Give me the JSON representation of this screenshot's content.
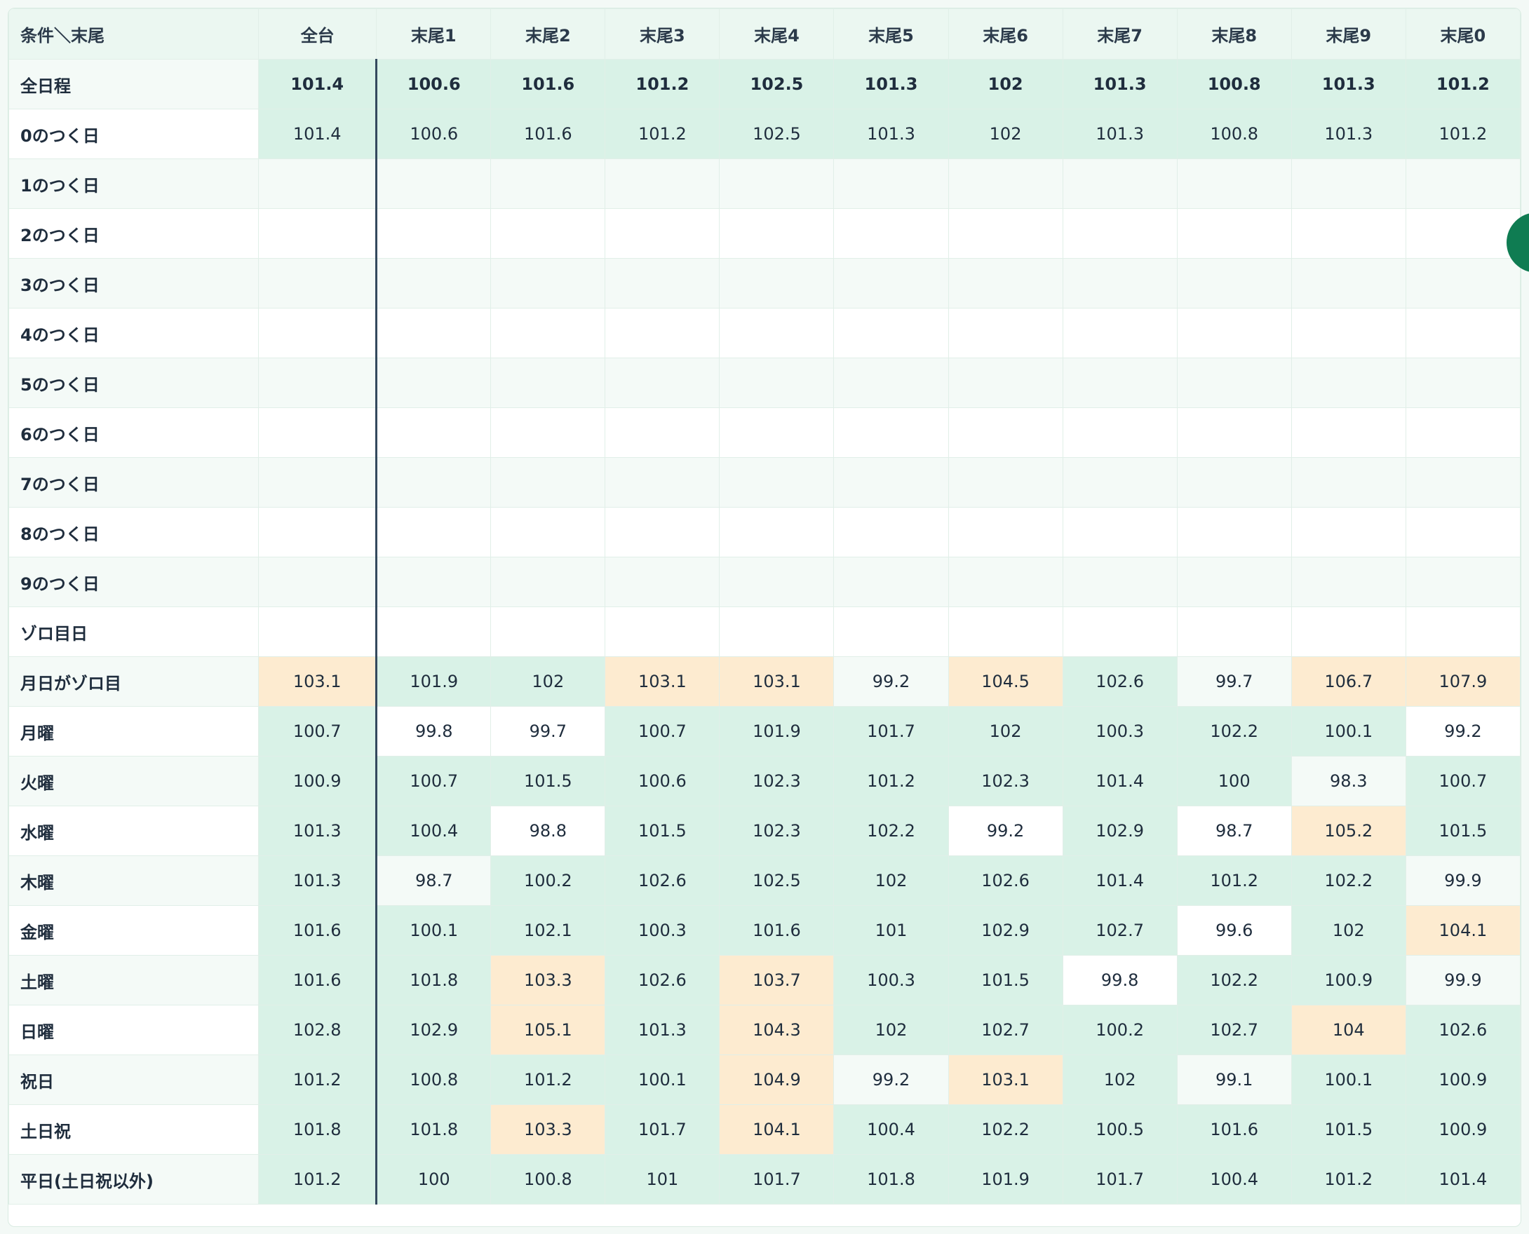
{
  "table": {
    "corner": "条件＼末尾",
    "columns": [
      "全台",
      "末尾1",
      "末尾2",
      "末尾3",
      "末尾4",
      "末尾5",
      "末尾6",
      "末尾7",
      "末尾8",
      "末尾9",
      "末尾0"
    ],
    "rows": [
      {
        "label": "全日程",
        "bold": true,
        "values": [
          "101.4",
          "100.6",
          "101.6",
          "101.2",
          "102.5",
          "101.3",
          "102",
          "101.3",
          "100.8",
          "101.3",
          "101.2"
        ],
        "tones": [
          "g",
          "g",
          "g",
          "g",
          "g",
          "g",
          "g",
          "g",
          "g",
          "g",
          "g"
        ]
      },
      {
        "label": "0のつく日",
        "values": [
          "101.4",
          "100.6",
          "101.6",
          "101.2",
          "102.5",
          "101.3",
          "102",
          "101.3",
          "100.8",
          "101.3",
          "101.2"
        ],
        "tones": [
          "g",
          "g",
          "g",
          "g",
          "g",
          "g",
          "g",
          "g",
          "g",
          "g",
          "g"
        ]
      },
      {
        "label": "1のつく日",
        "values": []
      },
      {
        "label": "2のつく日",
        "values": []
      },
      {
        "label": "3のつく日",
        "values": []
      },
      {
        "label": "4のつく日",
        "values": []
      },
      {
        "label": "5のつく日",
        "values": []
      },
      {
        "label": "6のつく日",
        "values": []
      },
      {
        "label": "7のつく日",
        "values": []
      },
      {
        "label": "8のつく日",
        "values": []
      },
      {
        "label": "9のつく日",
        "values": []
      },
      {
        "label": "ゾロ目日",
        "values": []
      },
      {
        "label": "月日がゾロ目",
        "values": [
          "103.1",
          "101.9",
          "102",
          "103.1",
          "103.1",
          "99.2",
          "104.5",
          "102.6",
          "99.7",
          "106.7",
          "107.9"
        ],
        "tones": [
          "o",
          "g",
          "g",
          "o",
          "o",
          "l",
          "o",
          "g",
          "l",
          "o",
          "o"
        ]
      },
      {
        "label": "月曜",
        "values": [
          "100.7",
          "99.8",
          "99.7",
          "100.7",
          "101.9",
          "101.7",
          "102",
          "100.3",
          "102.2",
          "100.1",
          "99.2"
        ],
        "tones": [
          "g",
          "w",
          "w",
          "g",
          "g",
          "g",
          "g",
          "g",
          "g",
          "g",
          "w"
        ]
      },
      {
        "label": "火曜",
        "values": [
          "100.9",
          "100.7",
          "101.5",
          "100.6",
          "102.3",
          "101.2",
          "102.3",
          "101.4",
          "100",
          "98.3",
          "100.7"
        ],
        "tones": [
          "g",
          "g",
          "g",
          "g",
          "g",
          "g",
          "g",
          "g",
          "g",
          "l",
          "g"
        ]
      },
      {
        "label": "水曜",
        "values": [
          "101.3",
          "100.4",
          "98.8",
          "101.5",
          "102.3",
          "102.2",
          "99.2",
          "102.9",
          "98.7",
          "105.2",
          "101.5"
        ],
        "tones": [
          "g",
          "g",
          "w",
          "g",
          "g",
          "g",
          "w",
          "g",
          "w",
          "o",
          "g"
        ]
      },
      {
        "label": "木曜",
        "values": [
          "101.3",
          "98.7",
          "100.2",
          "102.6",
          "102.5",
          "102",
          "102.6",
          "101.4",
          "101.2",
          "102.2",
          "99.9"
        ],
        "tones": [
          "g",
          "l",
          "g",
          "g",
          "g",
          "g",
          "g",
          "g",
          "g",
          "g",
          "l"
        ]
      },
      {
        "label": "金曜",
        "values": [
          "101.6",
          "100.1",
          "102.1",
          "100.3",
          "101.6",
          "101",
          "102.9",
          "102.7",
          "99.6",
          "102",
          "104.1"
        ],
        "tones": [
          "g",
          "g",
          "g",
          "g",
          "g",
          "g",
          "g",
          "g",
          "w",
          "g",
          "o"
        ]
      },
      {
        "label": "土曜",
        "values": [
          "101.6",
          "101.8",
          "103.3",
          "102.6",
          "103.7",
          "100.3",
          "101.5",
          "99.8",
          "102.2",
          "100.9",
          "99.9"
        ],
        "tones": [
          "g",
          "g",
          "o",
          "g",
          "o",
          "g",
          "g",
          "w",
          "g",
          "g",
          "l"
        ]
      },
      {
        "label": "日曜",
        "values": [
          "102.8",
          "102.9",
          "105.1",
          "101.3",
          "104.3",
          "102",
          "102.7",
          "100.2",
          "102.7",
          "104",
          "102.6"
        ],
        "tones": [
          "g",
          "g",
          "o",
          "g",
          "o",
          "g",
          "g",
          "g",
          "g",
          "o",
          "g"
        ]
      },
      {
        "label": "祝日",
        "values": [
          "101.2",
          "100.8",
          "101.2",
          "100.1",
          "104.9",
          "99.2",
          "103.1",
          "102",
          "99.1",
          "100.1",
          "100.9"
        ],
        "tones": [
          "g",
          "g",
          "g",
          "g",
          "o",
          "l",
          "o",
          "g",
          "l",
          "g",
          "g"
        ]
      },
      {
        "label": "土日祝",
        "values": [
          "101.8",
          "101.8",
          "103.3",
          "101.7",
          "104.1",
          "100.4",
          "102.2",
          "100.5",
          "101.6",
          "101.5",
          "100.9"
        ],
        "tones": [
          "g",
          "g",
          "o",
          "g",
          "o",
          "g",
          "g",
          "g",
          "g",
          "g",
          "g"
        ]
      },
      {
        "label": "平日(土日祝以外)",
        "values": [
          "101.2",
          "100",
          "100.8",
          "101",
          "101.7",
          "101.8",
          "101.9",
          "101.7",
          "100.4",
          "101.2",
          "101.4"
        ],
        "tones": [
          "g",
          "g",
          "g",
          "g",
          "g",
          "g",
          "g",
          "g",
          "g",
          "g",
          "g"
        ]
      }
    ]
  },
  "colors": {
    "high": "#fdebd0",
    "mid": "#d9f2e7",
    "low": "#ffffff",
    "neutral": "#f4faf7",
    "fab": "#0f7c52"
  }
}
